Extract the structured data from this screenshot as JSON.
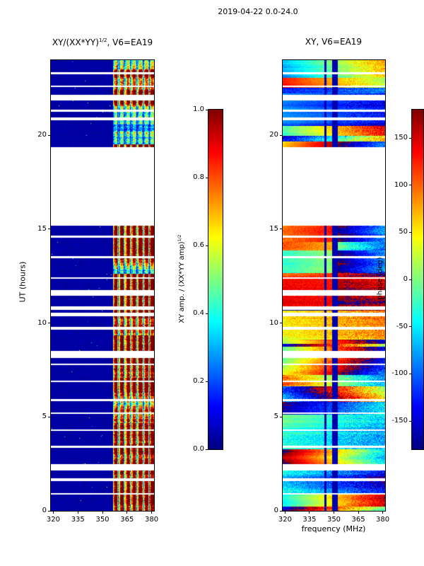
{
  "figure": {
    "title": "2019-04-22 0.0-24.0"
  },
  "left_plot": {
    "title_prefix": "XY/(XX*YY)",
    "title_sup": "1/2",
    "title_suffix": ", V6=EA19",
    "ylabel": "UT (hours)"
  },
  "right_plot": {
    "title": "XY, V6=EA19",
    "xlabel": "frequency (MHz)"
  },
  "left_colorbar": {
    "label_prefix": "XY amp. / (XX*YY amp)",
    "label_sup": "1/2",
    "ticks": [
      {
        "label": "1.0",
        "value": 1.0
      },
      {
        "label": "0.8",
        "value": 0.8
      },
      {
        "label": "0.6",
        "value": 0.6
      },
      {
        "label": "0.4",
        "value": 0.4
      },
      {
        "label": "0.2",
        "value": 0.2
      },
      {
        "label": "0.0",
        "value": 0.0
      }
    ]
  },
  "right_colorbar": {
    "label": "phase (deg)",
    "ticks": [
      {
        "label": "150",
        "value": 150
      },
      {
        "label": "100",
        "value": 100
      },
      {
        "label": "50",
        "value": 50
      },
      {
        "label": "0",
        "value": 0
      },
      {
        "label": "-50",
        "value": -50
      },
      {
        "label": "-100",
        "value": -100
      },
      {
        "label": "-150",
        "value": -150
      }
    ]
  },
  "chart_data": {
    "type": "heatmap",
    "colormap": "jet",
    "x_range": [
      318.5,
      381.5
    ],
    "y_range": [
      0,
      24
    ],
    "xticks": [
      320,
      335,
      350,
      365,
      380
    ],
    "yticks": [
      0,
      5,
      10,
      15,
      20
    ],
    "x_unit": "MHz",
    "y_unit": "hours",
    "data_gaps_hours": [
      [
        0.85,
        0.95
      ],
      [
        1.6,
        1.75
      ],
      [
        2.15,
        2.5
      ],
      [
        3.35,
        3.45
      ],
      [
        4.25,
        4.35
      ],
      [
        5.15,
        5.25
      ],
      [
        5.85,
        5.95
      ],
      [
        6.85,
        6.95
      ],
      [
        7.75,
        7.85
      ],
      [
        8.15,
        8.5
      ],
      [
        9.65,
        9.8
      ],
      [
        10.35,
        10.55
      ],
      [
        10.7,
        10.9
      ],
      [
        11.45,
        11.75
      ],
      [
        12.35,
        12.45
      ],
      [
        13.45,
        13.55
      ],
      [
        14.55,
        14.65
      ],
      [
        15.2,
        19.35
      ],
      [
        20.8,
        20.95
      ],
      [
        21.25,
        21.35
      ],
      [
        21.85,
        22.15
      ],
      [
        22.55,
        22.65
      ],
      [
        23.25,
        23.35
      ]
    ],
    "plots": [
      {
        "id": "normalized_amplitude",
        "title": "XY/(XX*YY)^(1/2), V6=EA19",
        "ylabel": "UT (hours)",
        "value_label": "XY amp. / (XX*YY amp)^(1/2)",
        "value_range": [
          0.0,
          1.0
        ],
        "colorbar_ticks": [
          1.0,
          0.8,
          0.6,
          0.4,
          0.2,
          0.0
        ],
        "content": {
          "background_amplitude_range": [
            0.0,
            0.08
          ],
          "bright_band_mhz": [
            356.5,
            381.5
          ],
          "bright_band_amplitude_range": [
            0.15,
            1.0
          ]
        }
      },
      {
        "id": "phase",
        "title": "XY, V6=EA19",
        "xlabel": "frequency (MHz)",
        "value_label": "phase (deg)",
        "value_range": [
          -180,
          180
        ],
        "colorbar_ticks": [
          150,
          100,
          50,
          0,
          -50,
          -100,
          -150
        ],
        "content": {
          "dark_bands_mhz": [
            [
              344.0,
              345.5
            ],
            [
              349.0,
              352.5
            ]
          ],
          "warm_region": {
            "hours": [
              10.9,
              15.2
            ],
            "mhz": [
              318.5,
              352.0
            ]
          }
        }
      }
    ]
  }
}
